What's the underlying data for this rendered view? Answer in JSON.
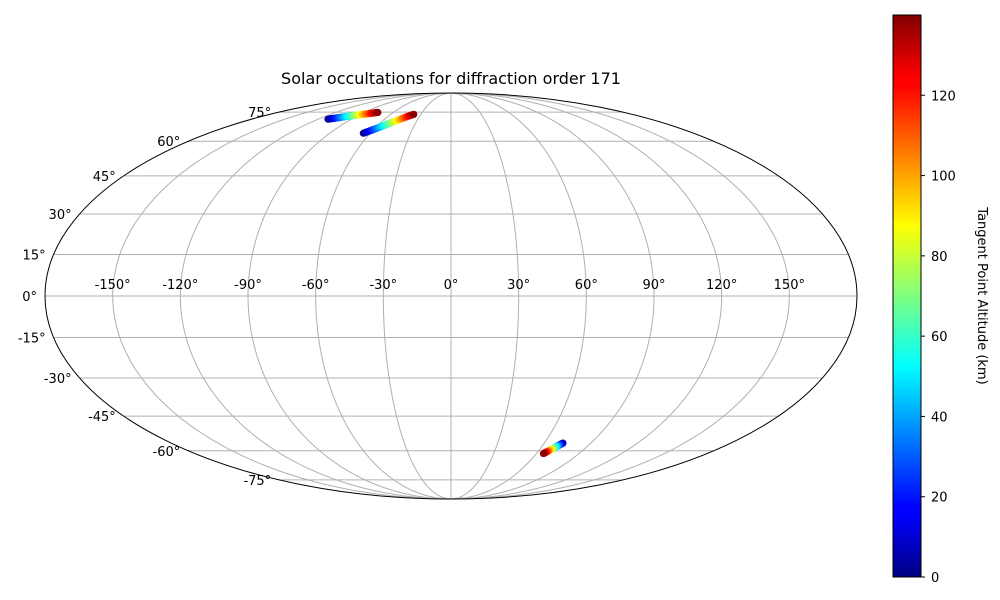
{
  "chart_data": {
    "type": "scatter",
    "projection": "mollweide",
    "title": "Solar occultations for diffraction order 171",
    "xlabel": "",
    "ylabel": "",
    "xlim": [
      -180,
      180
    ],
    "ylim": [
      -90,
      90
    ],
    "grid": true,
    "xtick_values": [
      -150,
      -120,
      -90,
      -60,
      -30,
      0,
      30,
      60,
      90,
      120,
      150
    ],
    "xtick_labels": [
      "-150°",
      "-120°",
      "-90°",
      "-60°",
      "-30°",
      "0°",
      "30°",
      "60°",
      "90°",
      "120°",
      "150°"
    ],
    "ytick_values": [
      75,
      60,
      45,
      30,
      15,
      0,
      -15,
      -30,
      -45,
      -60,
      -75
    ],
    "ytick_labels": [
      "75°",
      "60°",
      "45°",
      "30°",
      "15°",
      "0°",
      "-15°",
      "-30°",
      "-45°",
      "-60°",
      "-75°"
    ],
    "colormap": "jet",
    "colorbar": {
      "label": "Tangent Point Altitude (km)",
      "range": [
        0,
        140
      ],
      "tick_values": [
        0,
        20,
        40,
        60,
        80,
        100,
        120
      ],
      "tick_labels": [
        "0",
        "20",
        "40",
        "60",
        "80",
        "100",
        "120"
      ]
    },
    "series": [
      {
        "points": [
          {
            "lon": -111,
            "lat": 71,
            "alt": 0
          },
          {
            "lon": -106,
            "lat": 71.6,
            "alt": 20
          },
          {
            "lon": -101,
            "lat": 72.2,
            "alt": 40
          },
          {
            "lon": -96,
            "lat": 72.8,
            "alt": 60
          },
          {
            "lon": -91,
            "lat": 73.3,
            "alt": 80
          },
          {
            "lon": -86,
            "lat": 73.8,
            "alt": 100
          },
          {
            "lon": -81,
            "lat": 74.3,
            "alt": 120
          },
          {
            "lon": -76,
            "lat": 74.8,
            "alt": 138
          }
        ]
      },
      {
        "points": [
          {
            "lon": -65,
            "lat": 63.8,
            "alt": 0
          },
          {
            "lon": -61,
            "lat": 65.3,
            "alt": 20
          },
          {
            "lon": -57,
            "lat": 66.8,
            "alt": 40
          },
          {
            "lon": -53,
            "lat": 68.3,
            "alt": 60
          },
          {
            "lon": -49,
            "lat": 69.8,
            "alt": 80
          },
          {
            "lon": -45,
            "lat": 71.2,
            "alt": 100
          },
          {
            "lon": -41,
            "lat": 72.6,
            "alt": 120
          },
          {
            "lon": -37,
            "lat": 73.7,
            "alt": 138
          }
        ]
      },
      {
        "points": [
          {
            "lon": 72,
            "lat": -56.5,
            "alt": 0
          },
          {
            "lon": 71,
            "lat": -57.2,
            "alt": 20
          },
          {
            "lon": 70,
            "lat": -57.9,
            "alt": 40
          },
          {
            "lon": 69,
            "lat": -58.6,
            "alt": 60
          },
          {
            "lon": 68,
            "lat": -59.3,
            "alt": 80
          },
          {
            "lon": 67,
            "lat": -60,
            "alt": 100
          },
          {
            "lon": 66,
            "lat": -60.7,
            "alt": 120
          },
          {
            "lon": 65,
            "lat": -61.3,
            "alt": 138
          }
        ]
      }
    ]
  }
}
